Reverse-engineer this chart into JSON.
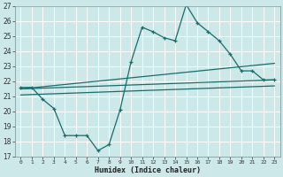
{
  "title": "",
  "xlabel": "Humidex (Indice chaleur)",
  "bg_color": "#cce8e8",
  "grid_color": "#ffffff",
  "line_color": "#1a6b6b",
  "xlim": [
    -0.5,
    23.5
  ],
  "ylim": [
    17,
    27
  ],
  "yticks": [
    17,
    18,
    19,
    20,
    21,
    22,
    23,
    24,
    25,
    26,
    27
  ],
  "xticks": [
    0,
    1,
    2,
    3,
    4,
    5,
    6,
    7,
    8,
    9,
    10,
    11,
    12,
    13,
    14,
    15,
    16,
    17,
    18,
    19,
    20,
    21,
    22,
    23
  ],
  "series_main": {
    "x": [
      0,
      1,
      2,
      3,
      4,
      5,
      6,
      7,
      8,
      9,
      10,
      11,
      12,
      13,
      14,
      15,
      16,
      17,
      18,
      19,
      20,
      21,
      22,
      23
    ],
    "y": [
      21.6,
      21.6,
      20.8,
      20.2,
      18.4,
      18.4,
      18.4,
      17.4,
      17.8,
      20.1,
      23.3,
      25.6,
      25.3,
      24.9,
      24.7,
      27.1,
      25.9,
      25.3,
      24.7,
      23.8,
      22.7,
      22.7,
      22.1,
      22.1
    ]
  },
  "series_upper": {
    "x": [
      0,
      23
    ],
    "y": [
      21.5,
      23.2
    ]
  },
  "series_mid": {
    "x": [
      0,
      23
    ],
    "y": [
      21.5,
      22.1
    ]
  },
  "series_lower": {
    "x": [
      0,
      23
    ],
    "y": [
      21.1,
      21.7
    ]
  }
}
